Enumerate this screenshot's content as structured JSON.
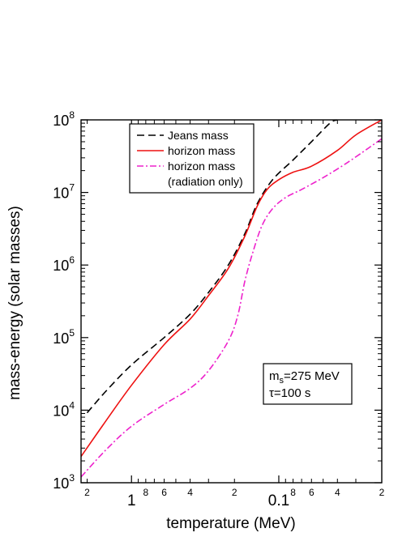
{
  "chart_data": {
    "type": "line",
    "xlabel": "temperature (MeV)",
    "ylabel": "mass-energy (solar masses)",
    "x_scale": "log",
    "x_reversed": true,
    "y_scale": "log",
    "xlim": [
      2.2,
      0.02
    ],
    "ylim": [
      1000,
      100000000
    ],
    "x_major_ticks": [
      {
        "value": 1,
        "label": "1"
      },
      {
        "value": 0.1,
        "label": "0.1"
      }
    ],
    "x_minor_ticks": [
      {
        "value": 2,
        "label": "2"
      },
      {
        "value": 0.8,
        "label": "8"
      },
      {
        "value": 0.6,
        "label": "6"
      },
      {
        "value": 0.4,
        "label": "4"
      },
      {
        "value": 0.2,
        "label": "2"
      },
      {
        "value": 0.08,
        "label": "8"
      },
      {
        "value": 0.06,
        "label": "6"
      },
      {
        "value": 0.04,
        "label": "4"
      },
      {
        "value": 0.02,
        "label": "2"
      }
    ],
    "y_ticks": [
      {
        "value": 1000,
        "base": "10",
        "exp": "3"
      },
      {
        "value": 10000,
        "base": "10",
        "exp": "4"
      },
      {
        "value": 100000,
        "base": "10",
        "exp": "5"
      },
      {
        "value": 1000000,
        "base": "10",
        "exp": "6"
      },
      {
        "value": 10000000,
        "base": "10",
        "exp": "7"
      },
      {
        "value": 100000000,
        "base": "10",
        "exp": "8"
      }
    ],
    "series": [
      {
        "name": "Jeans mass",
        "color": "#000000",
        "dash": "dashed",
        "points": [
          [
            2.0,
            9200
          ],
          [
            1.5,
            18000
          ],
          [
            1.0,
            42000
          ],
          [
            0.6,
            100000
          ],
          [
            0.4,
            210000
          ],
          [
            0.3,
            420000
          ],
          [
            0.22,
            1000000
          ],
          [
            0.17,
            2700000
          ],
          [
            0.14,
            7000000
          ],
          [
            0.11,
            15000000
          ],
          [
            0.08,
            28000000
          ],
          [
            0.06,
            50000000
          ],
          [
            0.045,
            90000000
          ],
          [
            0.04,
            100000000
          ]
        ]
      },
      {
        "name": "horizon mass",
        "color": "#ee1111",
        "dash": "solid",
        "points": [
          [
            2.2,
            2300
          ],
          [
            1.5,
            7000
          ],
          [
            1.0,
            22000
          ],
          [
            0.6,
            80000
          ],
          [
            0.4,
            180000
          ],
          [
            0.3,
            380000
          ],
          [
            0.22,
            900000
          ],
          [
            0.17,
            2500000
          ],
          [
            0.14,
            6500000
          ],
          [
            0.12,
            11000000
          ],
          [
            0.1,
            15000000
          ],
          [
            0.08,
            19000000
          ],
          [
            0.06,
            23000000
          ],
          [
            0.04,
            38000000
          ],
          [
            0.03,
            62000000
          ],
          [
            0.02,
            100000000
          ]
        ]
      },
      {
        "name": "horizon mass (radiation only)",
        "color": "#ee22cc",
        "dash": "dashdot",
        "points": [
          [
            2.2,
            1200
          ],
          [
            1.5,
            2800
          ],
          [
            1.0,
            6000
          ],
          [
            0.6,
            12000
          ],
          [
            0.4,
            20000
          ],
          [
            0.3,
            35000
          ],
          [
            0.22,
            90000
          ],
          [
            0.19,
            200000
          ],
          [
            0.17,
            600000
          ],
          [
            0.15,
            1500000
          ],
          [
            0.13,
            3500000
          ],
          [
            0.11,
            6000000
          ],
          [
            0.09,
            8500000
          ],
          [
            0.07,
            11000000
          ],
          [
            0.05,
            16000000
          ],
          [
            0.035,
            25000000
          ],
          [
            0.025,
            40000000
          ],
          [
            0.02,
            55000000
          ]
        ]
      }
    ],
    "legend": {
      "placement": "top-left",
      "entries": [
        {
          "label": "Jeans mass",
          "color": "#000000",
          "dash": "dashed"
        },
        {
          "label": "horizon mass",
          "color": "#ee1111",
          "dash": "solid"
        },
        {
          "label": "horizon mass",
          "color": "#ee22cc",
          "dash": "dashdot"
        },
        {
          "label": "(radiation only)",
          "color": "",
          "dash": "none"
        }
      ]
    },
    "annotation": {
      "line1_prefix": "m",
      "line1_sub": "s",
      "line1_suffix": "=275 MeV",
      "line2": "τ=100 s"
    }
  }
}
